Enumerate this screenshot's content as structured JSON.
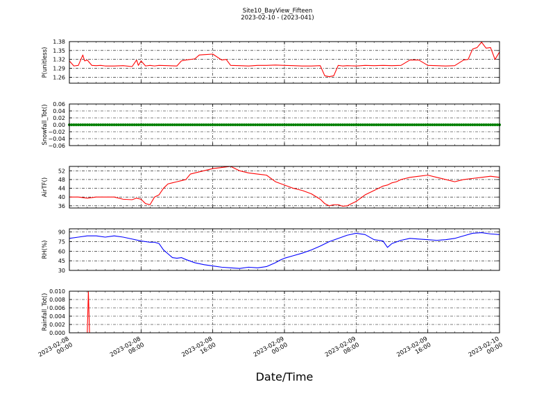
{
  "chart_data": {
    "title": "Site10_BayView_Fifteen",
    "subtitle": "2023-02-10 - (2023-041)",
    "xlabel": "Date/Time",
    "x_range": [
      "2023-02-08 00:00",
      "2023-02-10 00:00"
    ],
    "x_ticks": [
      {
        "t": "2023-02-08 00:00",
        "line1": "2023-02-08",
        "line2": "00:00"
      },
      {
        "t": "2023-02-08 08:00",
        "line1": "2023-02-08",
        "line2": "08:00"
      },
      {
        "t": "2023-02-08 16:00",
        "line1": "2023-02-08",
        "line2": "16:00"
      },
      {
        "t": "2023-02-09 00:00",
        "line1": "2023-02-09",
        "line2": "00:00"
      },
      {
        "t": "2023-02-09 08:00",
        "line1": "2023-02-09",
        "line2": "08:00"
      },
      {
        "t": "2023-02-09 16:00",
        "line1": "2023-02-09",
        "line2": "16:00"
      },
      {
        "t": "2023-02-10 00:00",
        "line1": "2023-02-10",
        "line2": "00:00"
      }
    ],
    "grid": true,
    "panels": [
      {
        "type": "line",
        "ylabel": "P(unitless)",
        "ylim": [
          1.24,
          1.38
        ],
        "yticks": [
          "1.26",
          "1.29",
          "1.32",
          "1.35",
          "1.38"
        ],
        "color": "#ff0000",
        "x_hours": [
          0,
          0.5,
          1,
          1.5,
          1.7,
          2,
          2.5,
          3,
          3.5,
          4,
          5,
          6,
          7,
          7.5,
          7.7,
          8,
          8.5,
          9,
          9.5,
          10,
          11,
          12,
          12.5,
          13,
          14,
          14.5,
          15,
          16,
          17,
          17.5,
          18,
          19,
          20,
          21,
          22,
          23,
          24,
          25,
          26,
          27,
          28,
          28.5,
          29,
          29.5,
          30,
          30.5,
          31,
          32,
          33,
          34,
          35,
          36,
          37,
          38,
          39,
          40,
          41,
          42,
          43,
          44,
          44.5,
          45,
          45.5,
          46,
          46.5,
          47,
          47.5,
          48
        ],
        "y": [
          1.315,
          1.298,
          1.3,
          1.335,
          1.315,
          1.318,
          1.3,
          1.299,
          1.3,
          1.298,
          1.298,
          1.299,
          1.296,
          1.318,
          1.3,
          1.315,
          1.298,
          1.3,
          1.298,
          1.3,
          1.299,
          1.298,
          1.315,
          1.318,
          1.322,
          1.335,
          1.336,
          1.338,
          1.318,
          1.32,
          1.3,
          1.299,
          1.298,
          1.3,
          1.3,
          1.301,
          1.3,
          1.299,
          1.298,
          1.298,
          1.299,
          1.265,
          1.262,
          1.265,
          1.3,
          1.298,
          1.299,
          1.298,
          1.3,
          1.299,
          1.3,
          1.299,
          1.3,
          1.318,
          1.318,
          1.3,
          1.299,
          1.298,
          1.299,
          1.318,
          1.32,
          1.355,
          1.36,
          1.378,
          1.358,
          1.36,
          1.32,
          1.345
        ]
      },
      {
        "type": "scatter",
        "ylabel": "Snowfall_Tot()",
        "ylim": [
          -0.06,
          0.06
        ],
        "yticks": [
          "−0.06",
          "−0.04",
          "−0.02",
          "0.00",
          "0.02",
          "0.04",
          "0.06"
        ],
        "color": "#008000",
        "constant_value": 0.0,
        "interval_minutes": 15
      },
      {
        "type": "line",
        "ylabel": "AirTF()",
        "ylim": [
          35,
          54
        ],
        "yticks": [
          "36",
          "40",
          "44",
          "48",
          "52"
        ],
        "color": "#ff0000",
        "x_hours": [
          0,
          1,
          2,
          3,
          4,
          5,
          6,
          7,
          7.5,
          8,
          8.5,
          9,
          9.5,
          10,
          10.5,
          11,
          11.5,
          12,
          12.5,
          13,
          13.5,
          14,
          15,
          16,
          17,
          18,
          19,
          20,
          21,
          22,
          23,
          24,
          25,
          26,
          27,
          28,
          28.5,
          29,
          29.5,
          30,
          30.5,
          31,
          31.5,
          32,
          32.5,
          33,
          33.5,
          34,
          34.5,
          35,
          35.5,
          36,
          36.5,
          37,
          37.5,
          38,
          39,
          40,
          41,
          42,
          43,
          44,
          45,
          46,
          47,
          48
        ],
        "y": [
          40,
          40,
          39.5,
          40,
          40,
          40,
          39,
          38.8,
          39.5,
          39,
          37,
          36.5,
          40,
          41,
          44,
          46,
          46.5,
          47,
          47.5,
          48,
          50.5,
          51,
          52,
          53,
          53.5,
          54,
          52,
          51,
          50.5,
          50,
          47,
          45.5,
          44,
          43,
          41.5,
          39,
          37,
          36,
          36.5,
          36.5,
          35.8,
          36,
          37,
          38,
          39.5,
          41,
          42,
          43,
          44,
          45,
          45.5,
          46.5,
          47,
          48,
          48.5,
          49,
          49.5,
          50,
          49,
          48,
          47,
          48,
          48.5,
          49,
          49.5,
          49
        ]
      },
      {
        "type": "line",
        "ylabel": "RH(%)",
        "ylim": [
          30,
          95
        ],
        "yticks": [
          "30",
          "45",
          "60",
          "75",
          "90"
        ],
        "color": "#0000ff",
        "x_hours": [
          0,
          1,
          2,
          3,
          4,
          5,
          6,
          7,
          8,
          9,
          9.5,
          10,
          10.5,
          11,
          11.5,
          12,
          12.5,
          13,
          14,
          15,
          16,
          17,
          18,
          19,
          20,
          21,
          22,
          23,
          23.5,
          24,
          25,
          26,
          27,
          28,
          29,
          30,
          31,
          32,
          33,
          34,
          35,
          35.5,
          36,
          37,
          38,
          39,
          40,
          41,
          42,
          43,
          44,
          45,
          46,
          47,
          48
        ],
        "y": [
          80,
          82,
          84,
          84,
          82,
          84,
          82,
          79,
          76,
          74,
          74,
          72,
          62,
          56,
          50,
          49,
          50,
          47,
          42,
          39,
          37,
          35,
          34,
          33,
          35,
          34,
          36,
          42,
          46,
          49,
          53,
          57,
          62,
          68,
          75,
          80,
          85,
          88,
          86,
          78,
          76,
          66,
          72,
          77,
          80,
          79,
          78,
          77,
          78,
          80,
          84,
          88,
          89,
          87,
          86
        ]
      },
      {
        "type": "line",
        "ylabel": "Rainfall_Tot()",
        "ylim": [
          0,
          0.01
        ],
        "yticks": [
          "0.000",
          "0.002",
          "0.004",
          "0.006",
          "0.008",
          "0.010"
        ],
        "color": "#ff0000",
        "x_hours": [
          0,
          2,
          2.12,
          2.25,
          48
        ],
        "y": [
          0,
          0,
          0.01,
          0,
          0
        ]
      }
    ]
  }
}
